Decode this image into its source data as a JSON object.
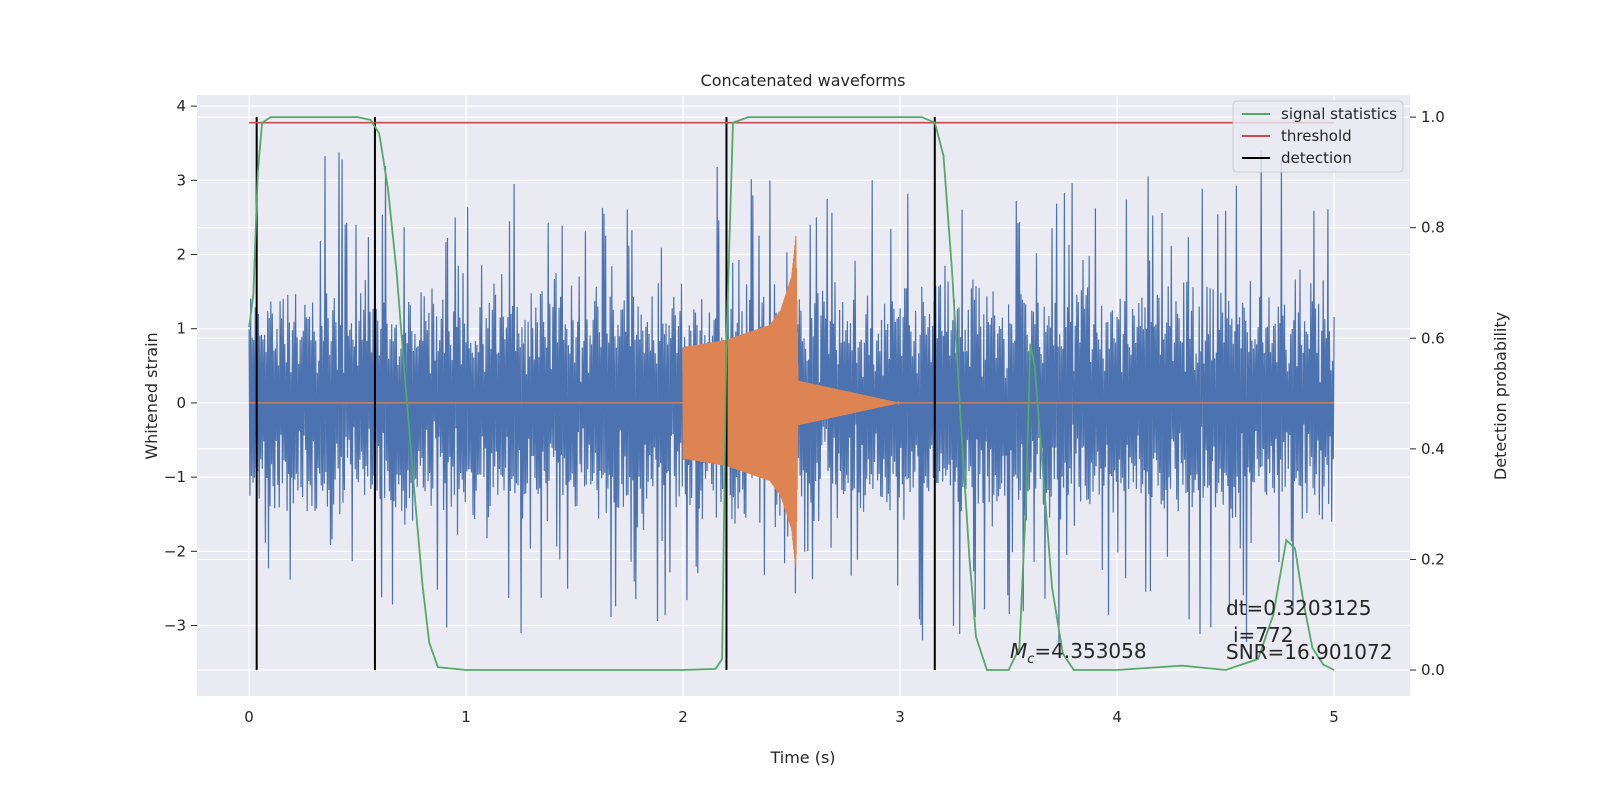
{
  "chart_data": {
    "type": "line",
    "title": "Concatenated waveforms",
    "xlabel": "Time (s)",
    "ylabel": "Whitened strain",
    "ylabel_right": "Detection probability",
    "xlim": [
      -0.24,
      5.35
    ],
    "ylim": [
      -3.95,
      4.15
    ],
    "ylim_right": [
      -0.047,
      1.04
    ],
    "xticks": [
      0,
      1,
      2,
      3,
      4,
      5
    ],
    "yticks": [
      -3,
      -2,
      -1,
      0,
      1,
      2,
      3,
      4
    ],
    "yticks_right": [
      0.0,
      0.2,
      0.4,
      0.6,
      0.8,
      1.0
    ],
    "yticks_right_labels": [
      "0.0",
      "0.2",
      "0.4",
      "0.6",
      "0.8",
      "1.0"
    ],
    "grid": true,
    "legend_position": "top-right",
    "colors": {
      "strain": "#4c72b0",
      "template": "#dd8452",
      "signal_statistics": "#55a868",
      "threshold": "#c44e52",
      "detection": "#000000",
      "background": "#eaeaf2",
      "grid": "#ffffff"
    },
    "series": [
      {
        "name": "signal statistics",
        "axis": "right",
        "x": [
          0.0,
          0.02,
          0.04,
          0.06,
          0.1,
          0.15,
          0.3,
          0.5,
          0.56,
          0.6,
          0.64,
          0.68,
          0.72,
          0.76,
          0.8,
          0.83,
          0.87,
          1.0,
          1.5,
          2.0,
          2.15,
          2.18,
          2.2,
          2.23,
          2.3,
          2.5,
          2.8,
          3.1,
          3.16,
          3.2,
          3.24,
          3.28,
          3.32,
          3.35,
          3.4,
          3.5,
          3.55,
          3.58,
          3.6,
          3.62,
          3.66,
          3.7,
          3.75,
          3.8,
          4.0,
          4.3,
          4.5,
          4.65,
          4.72,
          4.78,
          4.82,
          4.86,
          4.9,
          4.95,
          5.0
        ],
        "y": [
          0.62,
          0.68,
          0.9,
          0.99,
          1.0,
          1.0,
          1.0,
          1.0,
          0.995,
          0.97,
          0.87,
          0.72,
          0.52,
          0.33,
          0.15,
          0.05,
          0.005,
          0.0,
          0.0,
          0.0,
          0.002,
          0.02,
          0.6,
          0.99,
          1.0,
          1.0,
          1.0,
          1.0,
          0.99,
          0.93,
          0.72,
          0.45,
          0.2,
          0.06,
          0.0,
          0.0,
          0.04,
          0.3,
          0.59,
          0.55,
          0.35,
          0.15,
          0.03,
          0.0,
          0.0,
          0.008,
          0.0,
          0.02,
          0.1,
          0.235,
          0.22,
          0.12,
          0.04,
          0.01,
          0.0
        ]
      },
      {
        "name": "threshold",
        "axis": "right",
        "x": [
          0.0,
          5.0
        ],
        "y": [
          0.99,
          0.99
        ]
      },
      {
        "name": "detection",
        "axis": "right",
        "x_lines": [
          0.035,
          0.58,
          2.2,
          3.16
        ],
        "y_range": [
          0.0,
          1.0
        ]
      }
    ],
    "strain_envelope": {
      "axis": "left",
      "x": [
        0.0,
        0.5,
        1.0,
        1.5,
        2.0,
        2.5,
        3.0,
        3.5,
        4.0,
        4.5,
        5.0
      ],
      "max": [
        2.5,
        3.7,
        3.1,
        3.0,
        3.2,
        3.2,
        3.0,
        3.1,
        3.2,
        3.75,
        2.9
      ],
      "min": [
        -2.7,
        -3.2,
        -3.2,
        -3.2,
        -3.0,
        -2.7,
        -3.4,
        -3.5,
        -3.3,
        -3.4,
        -2.7
      ],
      "dense_band": [
        -0.6,
        0.6
      ]
    },
    "template_envelope": {
      "axis": "left",
      "x": [
        2.0,
        2.2,
        2.4,
        2.45,
        2.5,
        2.52,
        2.53,
        3.0
      ],
      "amplitude": [
        0.75,
        0.85,
        1.05,
        1.25,
        1.7,
        2.25,
        0.3,
        0.0
      ]
    },
    "annotations": {
      "mc": "=4.353058",
      "dt": "dt=0.3203125",
      "i": "i=772",
      "snr": "SNR=16.901072"
    }
  }
}
